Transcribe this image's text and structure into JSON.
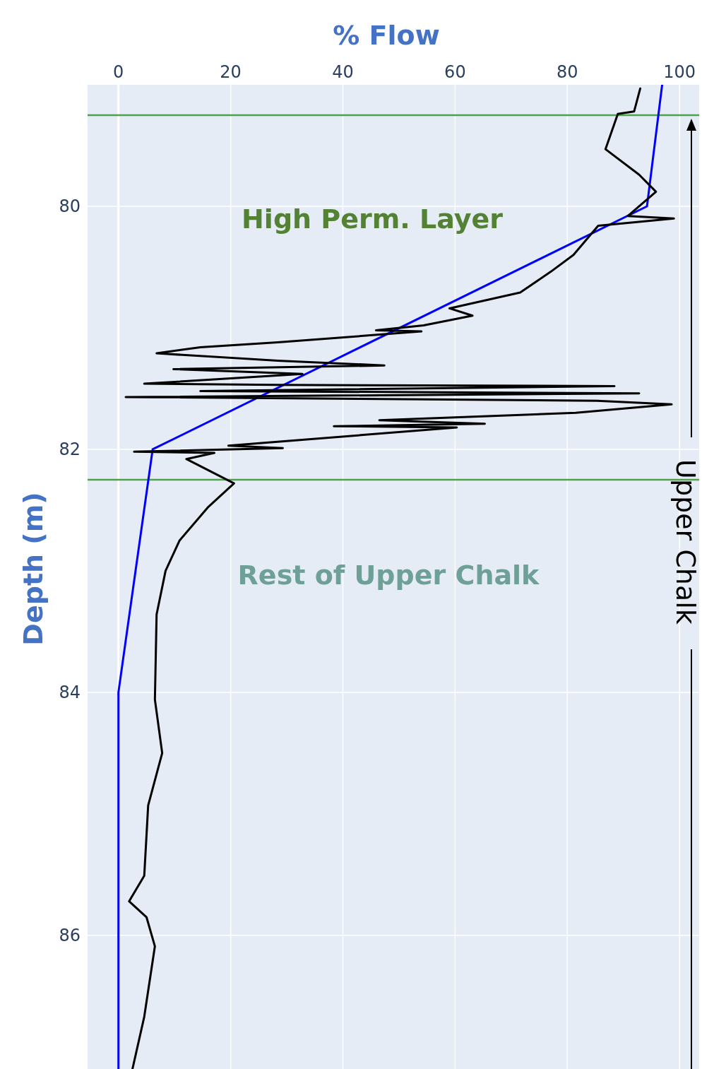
{
  "chart_data": {
    "type": "line",
    "xlabel": "% Flow",
    "ylabel": "Depth (m)",
    "xlim": [
      -5.5,
      103.5
    ],
    "xticks": [
      0,
      20,
      40,
      60,
      80,
      100
    ],
    "ylim": [
      87.1,
      79.0
    ],
    "yticks": [
      80,
      82,
      84,
      86
    ],
    "grid": true,
    "ref_lines": [
      {
        "axis": "y",
        "value": 79.25,
        "color": "#4ea24e"
      },
      {
        "axis": "y",
        "value": 82.25,
        "color": "#4ea24e"
      }
    ],
    "annotations": [
      "High Perm. Layer",
      "Rest of Upper Chalk",
      "Upper Chalk"
    ],
    "series": [
      {
        "color": "#0000ff",
        "x": [
          96.9,
          94.2,
          6.1,
          0,
          0
        ],
        "values": [
          79.0,
          80.0,
          82.0,
          84.0,
          87.1
        ]
      },
      {
        "color": "#000000",
        "x": [
          93.0,
          91.9,
          89.0,
          86.8,
          92.8,
          95.8,
          90.8,
          99.0,
          85.5,
          81.1,
          77.0,
          71.6,
          59.0,
          63.1,
          54.4,
          45.9,
          54.0,
          28.4,
          14.6,
          6.8,
          28.4,
          47.4,
          9.8,
          32.8,
          4.6,
          28.4,
          88.4,
          14.6,
          92.8,
          1.3,
          85.3,
          98.6,
          81.5,
          46.5,
          65.3,
          38.4,
          60.3,
          19.6,
          29.3,
          2.8,
          17.1,
          12.1,
          20.6,
          15.9,
          10.9,
          8.4,
          6.8,
          6.5,
          7.8,
          5.3,
          4.6,
          1.9,
          5.0,
          6.5,
          4.6,
          2.5
        ],
        "values": [
          79.03,
          79.22,
          79.24,
          79.53,
          79.74,
          79.88,
          80.08,
          80.1,
          80.16,
          80.4,
          80.54,
          80.71,
          80.84,
          80.9,
          80.98,
          81.02,
          81.03,
          81.12,
          81.16,
          81.21,
          81.27,
          81.31,
          81.34,
          81.38,
          81.46,
          81.47,
          81.48,
          81.52,
          81.54,
          81.57,
          81.6,
          81.63,
          81.7,
          81.76,
          81.79,
          81.81,
          81.82,
          81.97,
          81.99,
          82.02,
          82.03,
          82.08,
          82.28,
          82.48,
          82.75,
          83.0,
          83.36,
          84.06,
          84.5,
          84.93,
          85.51,
          85.72,
          85.85,
          86.09,
          86.67,
          87.1
        ]
      }
    ]
  }
}
